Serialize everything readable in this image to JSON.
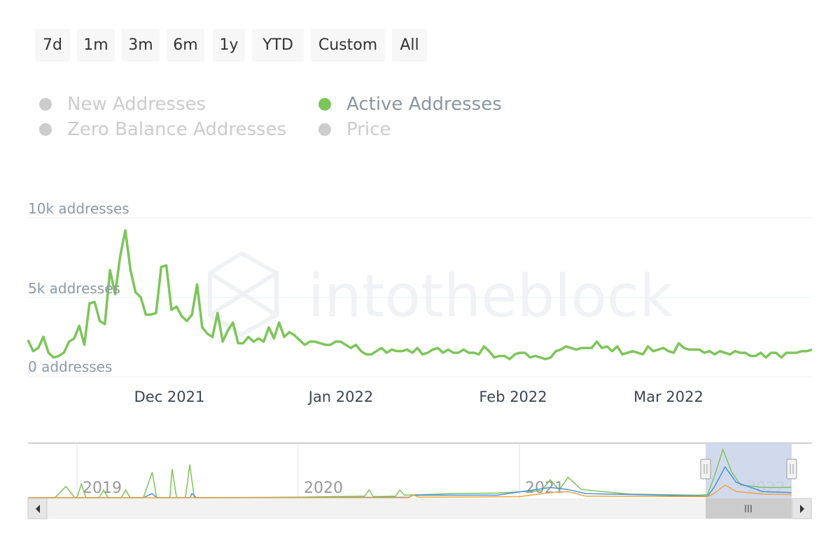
{
  "range_buttons": [
    "7d",
    "1m",
    "3m",
    "6m",
    "1y",
    "YTD",
    "Custom",
    "All"
  ],
  "legend": [
    {
      "label": "New Addresses",
      "active": false
    },
    {
      "label": "Active Addresses",
      "active": true
    },
    {
      "label": "Zero Balance Addresses",
      "active": false
    },
    {
      "label": "Price",
      "active": false
    }
  ],
  "watermark": "intotheblock",
  "colors": {
    "active": "#7cc55a",
    "new": "#4a8fe7",
    "zero": "#f0a53a",
    "inactive": "#cccccc"
  },
  "chart_data": {
    "type": "line",
    "title": "",
    "series": [
      {
        "name": "Active Addresses",
        "color": "#7cc55a",
        "values": [
          2.3,
          1.6,
          1.8,
          2.5,
          1.5,
          1.2,
          1.3,
          1.5,
          2.2,
          2.4,
          3.2,
          2.0,
          4.6,
          4.7,
          3.5,
          3.3,
          6.7,
          5.2,
          7.6,
          9.2,
          6.7,
          5.3,
          5.0,
          3.9,
          3.9,
          4.0,
          6.9,
          7.0,
          4.2,
          4.4,
          3.8,
          3.5,
          3.9,
          5.8,
          3.1,
          2.7,
          2.5,
          4.0,
          2.2,
          2.9,
          3.4,
          2.1,
          2.1,
          2.5,
          2.2,
          2.4,
          2.2,
          3.1,
          2.4,
          3.4,
          2.5,
          2.8,
          2.6,
          2.3,
          2.0,
          2.2,
          2.2,
          2.1,
          2.0,
          2.0,
          2.2,
          2.2,
          2.0,
          1.8,
          2.0,
          1.6,
          1.4,
          1.4,
          1.6,
          1.8,
          1.5,
          1.7,
          1.6,
          1.6,
          1.7,
          1.5,
          1.8,
          1.4,
          1.5,
          1.7,
          1.8,
          1.5,
          1.7,
          1.5,
          1.5,
          1.7,
          1.5,
          1.5,
          1.4,
          1.9,
          1.6,
          1.2,
          1.3,
          1.3,
          1.1,
          1.4,
          1.5,
          1.5,
          1.2,
          1.3,
          1.2,
          1.1,
          1.2,
          1.6,
          1.7,
          1.9,
          1.8,
          1.7,
          1.8,
          1.8,
          1.8,
          2.2,
          1.8,
          1.9,
          1.6,
          1.9,
          1.4,
          1.5,
          1.6,
          1.5,
          1.4,
          1.9,
          1.6,
          1.7,
          1.8,
          1.6,
          1.5,
          2.1,
          1.8,
          1.7,
          1.7,
          1.7,
          1.5,
          1.6,
          1.4,
          1.6,
          1.5,
          1.4,
          1.6,
          1.5,
          1.5,
          1.3,
          1.3,
          1.5,
          1.2,
          1.5,
          1.5,
          1.2,
          1.5,
          1.5,
          1.5,
          1.6,
          1.6,
          1.7
        ]
      }
    ],
    "x_start": "2021-11-05",
    "x_end": "2022-03-27",
    "xticks": [
      "Dec 2021",
      "Jan 2022",
      "Feb 2022",
      "Mar 2022"
    ],
    "yticks": [
      "0 addresses",
      "5k addresses",
      "10k addresses"
    ],
    "ylim": [
      0,
      10000
    ],
    "navigator": {
      "xticks": [
        "2019",
        "2020",
        "2021",
        "2022"
      ],
      "series": [
        {
          "name": "Active Addresses",
          "color": "#7cc55a",
          "points": [
            [
              2018.78,
              0
            ],
            [
              2018.9,
              0
            ],
            [
              2018.95,
              2.2
            ],
            [
              2018.99,
              0
            ],
            [
              2019.0,
              0
            ],
            [
              2019.02,
              2.7
            ],
            [
              2019.04,
              0
            ],
            [
              2019.1,
              0
            ],
            [
              2019.12,
              1.5
            ],
            [
              2019.14,
              0
            ],
            [
              2019.2,
              0
            ],
            [
              2019.22,
              1.5
            ],
            [
              2019.24,
              0
            ],
            [
              2019.3,
              0
            ],
            [
              2019.34,
              5
            ],
            [
              2019.36,
              0
            ],
            [
              2019.42,
              0
            ],
            [
              2019.43,
              5.6
            ],
            [
              2019.45,
              0
            ],
            [
              2019.49,
              0
            ],
            [
              2019.51,
              6.5
            ],
            [
              2019.53,
              0
            ],
            [
              2020.0,
              0.1
            ],
            [
              2020.3,
              0.3
            ],
            [
              2020.32,
              1.5
            ],
            [
              2020.34,
              0.2
            ],
            [
              2020.44,
              0.3
            ],
            [
              2020.46,
              1.5
            ],
            [
              2020.48,
              0.5
            ],
            [
              2020.7,
              0.8
            ],
            [
              2020.9,
              0.9
            ],
            [
              2021.1,
              1.4
            ],
            [
              2021.14,
              3.5
            ],
            [
              2021.18,
              1.5
            ],
            [
              2021.22,
              4.0
            ],
            [
              2021.28,
              1.6
            ],
            [
              2021.5,
              0.7
            ],
            [
              2021.8,
              0.5
            ],
            [
              2021.85,
              0.6
            ],
            [
              2021.88,
              4
            ],
            [
              2021.92,
              9.4
            ],
            [
              2021.96,
              5
            ],
            [
              2022.0,
              2.5
            ],
            [
              2022.1,
              2.0
            ],
            [
              2022.23,
              2.0
            ]
          ]
        },
        {
          "name": "New Addresses",
          "color": "#4a8fe7",
          "points": [
            [
              2018.78,
              0
            ],
            [
              2019.3,
              0
            ],
            [
              2019.34,
              0.8
            ],
            [
              2019.36,
              0
            ],
            [
              2019.51,
              0
            ],
            [
              2019.52,
              0.8
            ],
            [
              2019.54,
              0
            ],
            [
              2020.5,
              0.1
            ],
            [
              2020.52,
              0.5
            ],
            [
              2020.9,
              0.5
            ],
            [
              2021.14,
              2.0
            ],
            [
              2021.22,
              1.6
            ],
            [
              2021.3,
              0.8
            ],
            [
              2021.85,
              0.3
            ],
            [
              2021.88,
              2
            ],
            [
              2021.93,
              6
            ],
            [
              2021.98,
              3
            ],
            [
              2022.1,
              1.2
            ],
            [
              2022.23,
              1.0
            ]
          ]
        },
        {
          "name": "Zero Balance Addresses",
          "color": "#f0a53a",
          "points": [
            [
              2018.78,
              0
            ],
            [
              2020.5,
              0
            ],
            [
              2020.52,
              0.5
            ],
            [
              2020.55,
              0.1
            ],
            [
              2021.0,
              0.2
            ],
            [
              2021.14,
              1.0
            ],
            [
              2021.22,
              1.2
            ],
            [
              2021.3,
              0.3
            ],
            [
              2021.85,
              0.2
            ],
            [
              2021.88,
              0.8
            ],
            [
              2021.93,
              2.5
            ],
            [
              2021.98,
              1.2
            ],
            [
              2022.1,
              0.7
            ],
            [
              2022.23,
              0.6
            ]
          ]
        }
      ],
      "selection": [
        "2021-11-05",
        "2022-03-27"
      ]
    }
  }
}
